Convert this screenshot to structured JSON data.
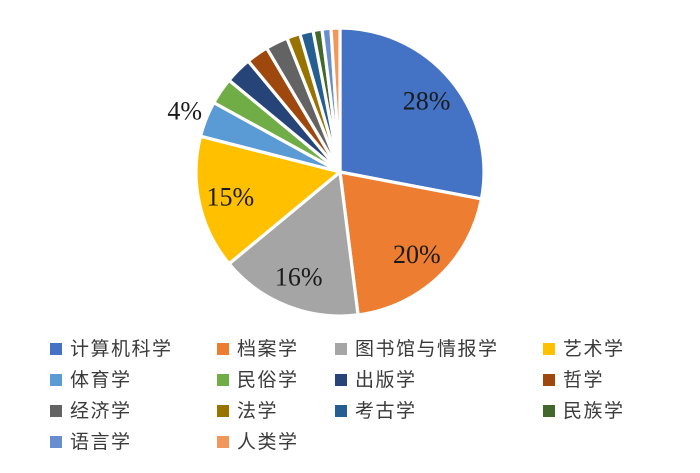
{
  "chart_data": {
    "type": "pie",
    "title": "",
    "categories": [
      "计算机科学",
      "档案学",
      "图书馆与情报学",
      "艺术学",
      "体育学",
      "民俗学",
      "出版学",
      "哲学",
      "经济学",
      "法学",
      "考古学",
      "民族学",
      "语言学",
      "人类学"
    ],
    "values": [
      28,
      20,
      16,
      15,
      4,
      3,
      3,
      2.5,
      2.5,
      1.5,
      1.5,
      1,
      1,
      1
    ],
    "colors": [
      "#4472C4",
      "#ED7D31",
      "#A5A5A5",
      "#FFC000",
      "#5B9BD5",
      "#70AD47",
      "#264478",
      "#9E480E",
      "#636363",
      "#997300",
      "#255E91",
      "#43682B",
      "#698ED0",
      "#F1975A"
    ],
    "data_labels": [
      "28%",
      "20%",
      "16%",
      "15%",
      "4%",
      "",
      "",
      "",
      "",
      "",
      "",
      "",
      "",
      ""
    ],
    "label_placement": [
      "inside",
      "inside",
      "inside",
      "inside",
      "outside",
      "none",
      "none",
      "none",
      "none",
      "none",
      "none",
      "none",
      "none",
      "none"
    ],
    "start_angle_deg": 0,
    "clockwise": true,
    "legend_position": "bottom",
    "legend_columns": 4,
    "slice_border_color": "#ffffff",
    "background_color": "#ffffff"
  }
}
